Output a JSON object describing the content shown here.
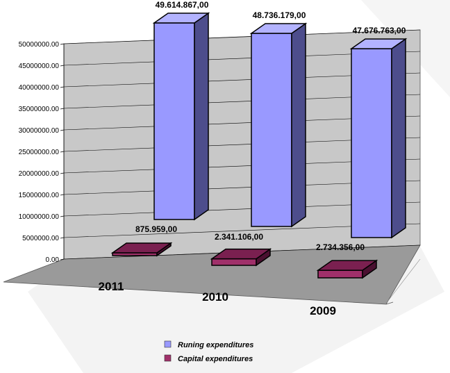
{
  "colors": {
    "running_front": "#9999ff",
    "running_side": "#4d4d8c",
    "running_top": "#b3b3ff",
    "capital_front": "#a0306a",
    "capital_side": "#4a1030",
    "capital_top": "#7a2050",
    "back_wall": "#c8c8c8",
    "side_wall": "#b0b0b0",
    "floor": "#9a9a9a"
  },
  "chart_data": {
    "type": "bar",
    "categories": [
      "2011",
      "2010",
      "2009"
    ],
    "series": [
      {
        "name": "Runing expenditures",
        "values": [
          49614867,
          48736179,
          47676763
        ],
        "labels": [
          "49.614.867,00",
          "48.736.179,00",
          "47.676.763,00"
        ]
      },
      {
        "name": "Capital expenditures",
        "values": [
          875959,
          2341106,
          2734356
        ],
        "labels": [
          "875.959,00",
          "2.341.106,00",
          "2.734.356,00"
        ]
      }
    ],
    "y_ticks": [
      "0.00",
      "5000000.00",
      "10000000.00",
      "15000000.00",
      "20000000.00",
      "25000000.00",
      "30000000.00",
      "35000000.00",
      "40000000.00",
      "45000000.00",
      "50000000.00"
    ],
    "ylim": [
      0,
      50000000
    ],
    "grid": true,
    "legend": "bottom-center"
  }
}
